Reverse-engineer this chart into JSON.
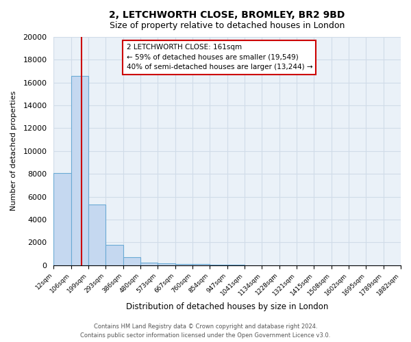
{
  "title": "2, LETCHWORTH CLOSE, BROMLEY, BR2 9BD",
  "subtitle": "Size of property relative to detached houses in London",
  "xlabel": "Distribution of detached houses by size in London",
  "ylabel": "Number of detached properties",
  "bar_color": "#c5d8f0",
  "bar_edge_color": "#6aaad4",
  "bar_heights": [
    8050,
    16550,
    5300,
    1800,
    700,
    250,
    150,
    100,
    100,
    30,
    20,
    15,
    10,
    8,
    5,
    5,
    5,
    5,
    5,
    5
  ],
  "bin_edges": [
    12,
    106,
    199,
    293,
    386,
    480,
    573,
    667,
    760,
    854,
    947,
    1041,
    1134,
    1228,
    1321,
    1415,
    1508,
    1602,
    1695,
    1789,
    1882
  ],
  "tick_labels": [
    "12sqm",
    "106sqm",
    "199sqm",
    "293sqm",
    "386sqm",
    "480sqm",
    "573sqm",
    "667sqm",
    "760sqm",
    "854sqm",
    "947sqm",
    "1041sqm",
    "1134sqm",
    "1228sqm",
    "1321sqm",
    "1415sqm",
    "1508sqm",
    "1602sqm",
    "1695sqm",
    "1789sqm",
    "1882sqm"
  ],
  "property_size": 161,
  "property_label": "2 LETCHWORTH CLOSE: 161sqm",
  "annotation_line1": "← 59% of detached houses are smaller (19,549)",
  "annotation_line2": "40% of semi-detached houses are larger (13,244) →",
  "red_line_color": "#cc0000",
  "annotation_box_color": "#ffffff",
  "annotation_box_edge": "#cc0000",
  "ylim": [
    0,
    20000
  ],
  "yticks": [
    0,
    2000,
    4000,
    6000,
    8000,
    10000,
    12000,
    14000,
    16000,
    18000,
    20000
  ],
  "grid_color": "#d0dce8",
  "background_color": "#eaf1f8",
  "footnote1": "Contains HM Land Registry data © Crown copyright and database right 2024.",
  "footnote2": "Contains public sector information licensed under the Open Government Licence v3.0."
}
